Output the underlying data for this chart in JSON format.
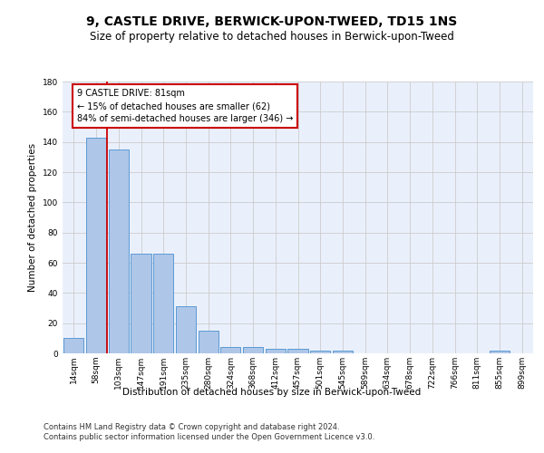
{
  "title": "9, CASTLE DRIVE, BERWICK-UPON-TWEED, TD15 1NS",
  "subtitle": "Size of property relative to detached houses in Berwick-upon-Tweed",
  "xlabel": "Distribution of detached houses by size in Berwick-upon-Tweed",
  "ylabel": "Number of detached properties",
  "bar_labels": [
    "14sqm",
    "58sqm",
    "103sqm",
    "147sqm",
    "191sqm",
    "235sqm",
    "280sqm",
    "324sqm",
    "368sqm",
    "412sqm",
    "457sqm",
    "501sqm",
    "545sqm",
    "589sqm",
    "634sqm",
    "678sqm",
    "722sqm",
    "766sqm",
    "811sqm",
    "855sqm",
    "899sqm"
  ],
  "bar_values": [
    10,
    143,
    135,
    66,
    66,
    31,
    15,
    4,
    4,
    3,
    3,
    2,
    2,
    0,
    0,
    0,
    0,
    0,
    0,
    2,
    0
  ],
  "bar_color": "#aec6e8",
  "bar_edge_color": "#5b9bd5",
  "red_line_x": 1.5,
  "annotation_text": "9 CASTLE DRIVE: 81sqm\n← 15% of detached houses are smaller (62)\n84% of semi-detached houses are larger (346) →",
  "annotation_box_color": "#ffffff",
  "annotation_box_edge_color": "#cc0000",
  "red_line_color": "#cc0000",
  "ylim": [
    0,
    180
  ],
  "yticks": [
    0,
    20,
    40,
    60,
    80,
    100,
    120,
    140,
    160,
    180
  ],
  "grid_color": "#cccccc",
  "bg_color": "#eaf0fb",
  "footer1": "Contains HM Land Registry data © Crown copyright and database right 2024.",
  "footer2": "Contains public sector information licensed under the Open Government Licence v3.0.",
  "title_fontsize": 10,
  "subtitle_fontsize": 8.5,
  "axis_label_fontsize": 7.5,
  "tick_fontsize": 6.5,
  "footer_fontsize": 6
}
